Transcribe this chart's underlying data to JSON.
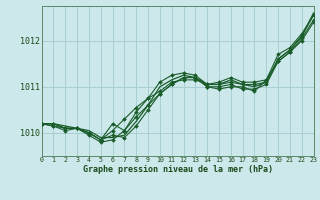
{
  "title": "Graphe pression niveau de la mer (hPa)",
  "xlabel_ticks": [
    "0",
    "1",
    "2",
    "3",
    "4",
    "5",
    "6",
    "7",
    "8",
    "9",
    "10",
    "11",
    "12",
    "13",
    "14",
    "15",
    "16",
    "17",
    "18",
    "19",
    "20",
    "21",
    "22",
    "23"
  ],
  "ylim": [
    1009.5,
    1012.75
  ],
  "yticks": [
    1010,
    1011,
    1012
  ],
  "xlim": [
    0,
    23
  ],
  "background_color": "#cce8ea",
  "grid_color": "#a8cfd2",
  "line_color": "#1a5c2a",
  "title_color": "#1a4a1a",
  "series": [
    [
      1010.2,
      1010.2,
      1010.1,
      1010.1,
      1010.0,
      1009.85,
      1010.05,
      1010.3,
      1010.55,
      1010.75,
      1010.9,
      1011.1,
      1011.15,
      1011.15,
      1011.05,
      1011.05,
      1011.1,
      1011.05,
      1011.05,
      1011.1,
      1011.6,
      1011.8,
      1012.1,
      1012.55
    ],
    [
      1010.2,
      1010.15,
      1010.05,
      1010.1,
      1009.95,
      1009.8,
      1009.85,
      1010.05,
      1010.35,
      1010.6,
      1010.85,
      1011.05,
      1011.2,
      1011.2,
      1011.0,
      1010.95,
      1011.0,
      1011.0,
      1010.9,
      1011.15,
      1011.55,
      1011.75,
      1012.0,
      1012.4
    ],
    [
      1010.2,
      1010.15,
      1010.1,
      1010.1,
      1010.0,
      1009.85,
      1010.2,
      1010.05,
      1010.45,
      1010.75,
      1011.1,
      1011.25,
      1011.3,
      1011.25,
      1011.05,
      1011.1,
      1011.2,
      1011.1,
      1011.1,
      1011.15,
      1011.7,
      1011.85,
      1012.15,
      1012.55
    ],
    [
      1010.2,
      1010.2,
      1010.1,
      1010.1,
      1010.0,
      1009.85,
      1009.95,
      1009.9,
      1010.15,
      1010.5,
      1010.85,
      1011.05,
      1011.2,
      1011.2,
      1011.0,
      1011.0,
      1011.05,
      1010.95,
      1010.95,
      1011.05,
      1011.55,
      1011.75,
      1012.05,
      1012.45
    ],
    [
      1010.2,
      1010.2,
      1010.15,
      1010.1,
      1010.05,
      1009.9,
      1009.9,
      1009.95,
      1010.25,
      1010.6,
      1011.0,
      1011.15,
      1011.25,
      1011.2,
      1011.05,
      1011.05,
      1011.15,
      1011.05,
      1011.0,
      1011.1,
      1011.6,
      1011.8,
      1012.1,
      1012.6
    ]
  ],
  "marker_series": [
    0,
    1,
    2,
    3
  ],
  "smooth_series": [
    4
  ]
}
